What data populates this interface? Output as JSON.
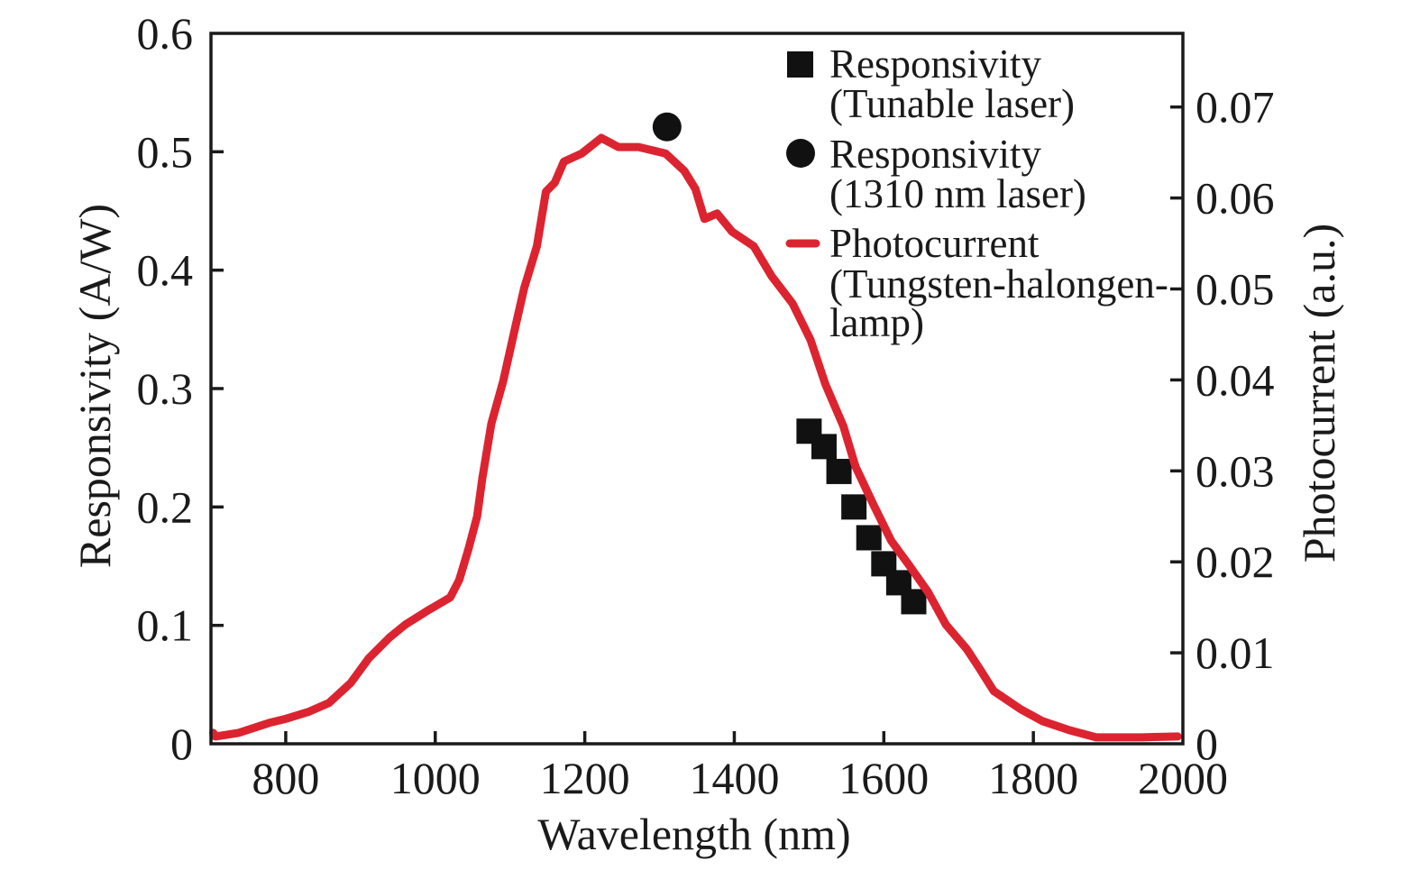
{
  "chart_data": {
    "type": "line",
    "title": "",
    "xlabel": "Wavelength (nm)",
    "ylabel": "Responsivity (A/W)",
    "y2label": "Photocurrent (a.u.)",
    "xlim": [
      700,
      2000
    ],
    "ylim": [
      0,
      0.6
    ],
    "y2lim": [
      0,
      0.0781
    ],
    "grid": false,
    "legend_position": "top-right",
    "xticks": [
      800,
      1000,
      1200,
      1400,
      1600,
      1800,
      2000
    ],
    "xtick_labels": [
      "800",
      "1000",
      "1200",
      "1400",
      "1600",
      "1800",
      "2000"
    ],
    "yticks": [
      0,
      0.1,
      0.2,
      0.3,
      0.4,
      0.5,
      0.6
    ],
    "ytick_labels": [
      "0",
      "0.1",
      "0.2",
      "0.3",
      "0.4",
      "0.5",
      "0.6"
    ],
    "y2ticks": [
      0,
      0.01,
      0.02,
      0.03,
      0.04,
      0.05,
      0.06,
      0.07
    ],
    "y2tick_labels": [
      "0",
      "0.01",
      "0.02",
      "0.03",
      "0.04",
      "0.05",
      "0.06",
      "0.07"
    ],
    "colors": {
      "axis": "#1a1a1a",
      "photocurrent": "#dc2430",
      "markers": "#111111"
    },
    "series": [
      {
        "name": "Responsivity (Tunable laser)",
        "legend_lines": [
          "Responsivity",
          "(Tunable laser)"
        ],
        "marker": "square",
        "axis": "left",
        "x": [
          1500,
          1520,
          1540,
          1560,
          1580,
          1600,
          1620,
          1640
        ],
        "y": [
          0.264,
          0.251,
          0.23,
          0.2,
          0.174,
          0.152,
          0.136,
          0.12
        ]
      },
      {
        "name": "Responsivity (1310 nm laser)",
        "legend_lines": [
          "Responsivity",
          "(1310 nm laser)"
        ],
        "marker": "circle",
        "axis": "left",
        "x": [
          1310
        ],
        "y": [
          0.521
        ]
      },
      {
        "name": "Photocurrent (Tungsten-halongen-lamp)",
        "legend_lines": [
          "Photocurrent",
          "(Tungsten-halongen-",
          "lamp)"
        ],
        "marker": "line",
        "axis": "right",
        "x": [
          703,
          706,
          737,
          778,
          798,
          830,
          858,
          887,
          911,
          939,
          960,
          991,
          1020,
          1032,
          1044,
          1056,
          1063,
          1075,
          1091,
          1107,
          1119,
          1136,
          1148,
          1160,
          1172,
          1196,
          1222,
          1245,
          1272,
          1308,
          1333,
          1348,
          1360,
          1377,
          1397,
          1426,
          1450,
          1478,
          1502,
          1522,
          1546,
          1562,
          1586,
          1610,
          1634,
          1659,
          1683,
          1711,
          1727,
          1747,
          1783,
          1812,
          1848,
          1884,
          1945,
          1993
        ],
        "y": [
          0.0012,
          0.0008,
          0.0012,
          0.0023,
          0.0027,
          0.0035,
          0.0045,
          0.0067,
          0.0094,
          0.0117,
          0.0131,
          0.0147,
          0.0161,
          0.018,
          0.0213,
          0.025,
          0.0292,
          0.0352,
          0.0399,
          0.0458,
          0.0501,
          0.0547,
          0.0607,
          0.0617,
          0.064,
          0.0649,
          0.0666,
          0.0656,
          0.0656,
          0.0649,
          0.063,
          0.061,
          0.0577,
          0.0583,
          0.0563,
          0.0547,
          0.0514,
          0.0484,
          0.0444,
          0.0395,
          0.0349,
          0.0305,
          0.0263,
          0.0223,
          0.0196,
          0.0167,
          0.0131,
          0.0104,
          0.0084,
          0.0058,
          0.0038,
          0.0025,
          0.0015,
          0.0007,
          0.0007,
          0.0008
        ]
      }
    ]
  }
}
